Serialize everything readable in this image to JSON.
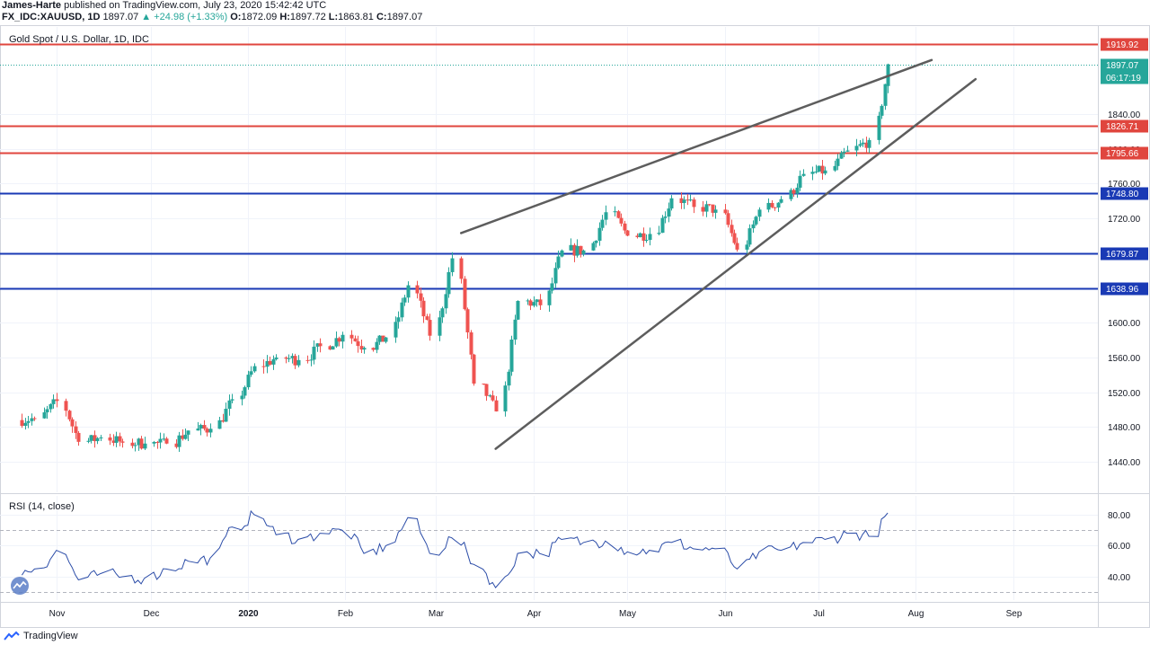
{
  "header": {
    "author": "James-Harte",
    "published_text": "published on TradingView.com, July 23, 2020 15:42:42 UTC",
    "symbol": "FX_IDC:XAUUSD, 1D",
    "last_price": "1897.07",
    "change": "▲ +24.98 (+1.33%)",
    "o_label": "O:",
    "o_value": "1872.09",
    "h_label": "H:",
    "h_value": "1897.72",
    "l_label": "L:",
    "l_value": "1863.81",
    "c_label": "C:",
    "c_value": "1897.07"
  },
  "main_panel": {
    "title": "Gold Spot / U.S. Dollar, 1D, IDC"
  },
  "rsi_panel": {
    "title": "RSI (14, close)"
  },
  "brand": {
    "label": "TradingView",
    "icon": "tradingview-logo-icon"
  },
  "colors": {
    "up": "#26a69a",
    "down": "#ef5350",
    "red_level": "#e0463e",
    "blue_level": "#1a3ab5",
    "trend": "#5d5d5d",
    "rsi": "#2c4da8"
  },
  "chart_data": [
    {
      "type": "candlestick",
      "title": "Gold Spot / U.S. Dollar, 1D, IDC",
      "x_ticks": [
        "Nov",
        "Dec",
        "2020",
        "Feb",
        "Mar",
        "Apr",
        "May",
        "Jun",
        "Jul",
        "Aug",
        "Sep"
      ],
      "y_ticks": [
        1440.0,
        1480.0,
        1520.0,
        1560.0,
        1600.0,
        1640.0,
        1680.0,
        1720.0,
        1760.0,
        1800.0,
        1840.0
      ],
      "ylim": [
        1405,
        1940
      ],
      "last_price": 1897.07,
      "countdown": "06:17:19",
      "horizontal_levels": [
        {
          "value": 1919.92,
          "label": "1919.92",
          "color": "red"
        },
        {
          "value": 1826.71,
          "label": "1826.71",
          "color": "red"
        },
        {
          "value": 1795.66,
          "label": "1795.66",
          "color": "red"
        },
        {
          "value": 1748.8,
          "label": "1748.80",
          "color": "blue"
        },
        {
          "value": 1679.87,
          "label": "1679.87",
          "color": "blue"
        },
        {
          "value": 1638.96,
          "label": "1638.96",
          "color": "blue"
        }
      ],
      "trend_lines": [
        {
          "from": {
            "date": "2020-03-09",
            "price": 1703
          },
          "to": {
            "date": "2020-08-06",
            "price": 1902
          }
        },
        {
          "from": {
            "date": "2020-03-20",
            "price": 1455
          },
          "to": {
            "date": "2020-08-20",
            "price": 1880
          }
        }
      ],
      "closes_weekly": [
        {
          "date": "2019-10-21",
          "close": 1490
        },
        {
          "date": "2019-10-28",
          "close": 1510
        },
        {
          "date": "2019-11-04",
          "close": 1463
        },
        {
          "date": "2019-11-11",
          "close": 1468
        },
        {
          "date": "2019-11-18",
          "close": 1462
        },
        {
          "date": "2019-11-25",
          "close": 1461
        },
        {
          "date": "2019-12-02",
          "close": 1461
        },
        {
          "date": "2019-12-09",
          "close": 1476
        },
        {
          "date": "2019-12-16",
          "close": 1478
        },
        {
          "date": "2019-12-23",
          "close": 1512
        },
        {
          "date": "2019-12-30",
          "close": 1550
        },
        {
          "date": "2020-01-06",
          "close": 1560
        },
        {
          "date": "2020-01-13",
          "close": 1557
        },
        {
          "date": "2020-01-20",
          "close": 1573
        },
        {
          "date": "2020-01-27",
          "close": 1586
        },
        {
          "date": "2020-02-03",
          "close": 1571
        },
        {
          "date": "2020-02-10",
          "close": 1583
        },
        {
          "date": "2020-02-17",
          "close": 1643
        },
        {
          "date": "2020-02-24",
          "close": 1585
        },
        {
          "date": "2020-03-02",
          "close": 1674
        },
        {
          "date": "2020-03-09",
          "close": 1530
        },
        {
          "date": "2020-03-16",
          "close": 1498
        },
        {
          "date": "2020-03-23",
          "close": 1625
        },
        {
          "date": "2020-03-30",
          "close": 1620
        },
        {
          "date": "2020-04-06",
          "close": 1683
        },
        {
          "date": "2020-04-13",
          "close": 1683
        },
        {
          "date": "2020-04-20",
          "close": 1727
        },
        {
          "date": "2020-04-27",
          "close": 1700
        },
        {
          "date": "2020-05-04",
          "close": 1702
        },
        {
          "date": "2020-05-11",
          "close": 1743
        },
        {
          "date": "2020-05-18",
          "close": 1733
        },
        {
          "date": "2020-05-25",
          "close": 1730
        },
        {
          "date": "2020-06-01",
          "close": 1684
        },
        {
          "date": "2020-06-08",
          "close": 1730
        },
        {
          "date": "2020-06-15",
          "close": 1742
        },
        {
          "date": "2020-06-22",
          "close": 1771
        },
        {
          "date": "2020-06-29",
          "close": 1775
        },
        {
          "date": "2020-07-06",
          "close": 1798
        },
        {
          "date": "2020-07-13",
          "close": 1810
        },
        {
          "date": "2020-07-20",
          "close": 1897
        }
      ]
    },
    {
      "type": "line",
      "title": "RSI (14, close)",
      "y_ticks": [
        40.0,
        60.0,
        80.0
      ],
      "reference_levels": [
        30,
        70
      ],
      "ylim": [
        25,
        92
      ],
      "series": [
        {
          "values_weekly": [
            {
              "date": "2019-10-21",
              "value": 45
            },
            {
              "date": "2019-10-28",
              "value": 57
            },
            {
              "date": "2019-11-04",
              "value": 38
            },
            {
              "date": "2019-11-11",
              "value": 42
            },
            {
              "date": "2019-11-18",
              "value": 40
            },
            {
              "date": "2019-11-25",
              "value": 39
            },
            {
              "date": "2019-12-02",
              "value": 45
            },
            {
              "date": "2019-12-09",
              "value": 50
            },
            {
              "date": "2019-12-16",
              "value": 52
            },
            {
              "date": "2019-12-23",
              "value": 72
            },
            {
              "date": "2019-12-30",
              "value": 80
            },
            {
              "date": "2020-01-06",
              "value": 67
            },
            {
              "date": "2020-01-13",
              "value": 64
            },
            {
              "date": "2020-01-20",
              "value": 68
            },
            {
              "date": "2020-01-27",
              "value": 70
            },
            {
              "date": "2020-02-03",
              "value": 55
            },
            {
              "date": "2020-02-10",
              "value": 60
            },
            {
              "date": "2020-02-17",
              "value": 78
            },
            {
              "date": "2020-02-24",
              "value": 55
            },
            {
              "date": "2020-03-02",
              "value": 65
            },
            {
              "date": "2020-03-09",
              "value": 48
            },
            {
              "date": "2020-03-16",
              "value": 33
            },
            {
              "date": "2020-03-23",
              "value": 55
            },
            {
              "date": "2020-03-30",
              "value": 55
            },
            {
              "date": "2020-04-06",
              "value": 64
            },
            {
              "date": "2020-04-13",
              "value": 62
            },
            {
              "date": "2020-04-20",
              "value": 63
            },
            {
              "date": "2020-04-27",
              "value": 56
            },
            {
              "date": "2020-05-04",
              "value": 57
            },
            {
              "date": "2020-05-11",
              "value": 62
            },
            {
              "date": "2020-05-18",
              "value": 58
            },
            {
              "date": "2020-05-25",
              "value": 58
            },
            {
              "date": "2020-06-01",
              "value": 45
            },
            {
              "date": "2020-06-08",
              "value": 56
            },
            {
              "date": "2020-06-15",
              "value": 57
            },
            {
              "date": "2020-06-22",
              "value": 62
            },
            {
              "date": "2020-06-29",
              "value": 64
            },
            {
              "date": "2020-07-06",
              "value": 68
            },
            {
              "date": "2020-07-13",
              "value": 66
            },
            {
              "date": "2020-07-20",
              "value": 81
            }
          ]
        }
      ]
    }
  ]
}
